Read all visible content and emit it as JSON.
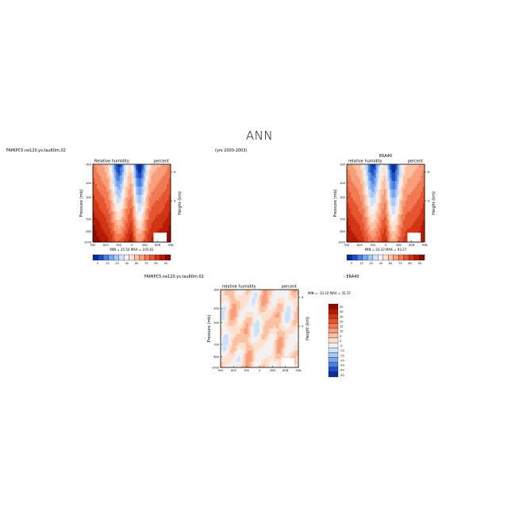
{
  "page": {
    "title": "ANN",
    "case_label": "FAMIPC5.ne120.ys.tau60m.02",
    "years_label": "(yrs 2000-2003)",
    "diff_case_label": "FAMIPC5.ne120.ys.tau60m.02",
    "diff_ref_label": "- ERA40"
  },
  "colors": {
    "scale": [
      "#08309a",
      "#1f4fc4",
      "#4a7fe0",
      "#78a8f0",
      "#a8c8f6",
      "#d0e2fa",
      "#f2f2f2",
      "#fde0cf",
      "#fcc1a3",
      "#f89e7a",
      "#f27a52",
      "#e65530",
      "#d23515",
      "#b51a05",
      "#8f0a00"
    ]
  },
  "chart_data": [
    {
      "type": "heatmap",
      "panel": "model",
      "title_left": "Relative humidity",
      "title_right": "percent",
      "ylabel": "Pressure (mb)",
      "y2label": "Height (km)",
      "x_ticks": [
        "90S",
        "60S",
        "30S",
        "0",
        "30N",
        "60N",
        "90N"
      ],
      "y_ticks": [
        "300",
        "400",
        "500",
        "700",
        "850",
        "1000"
      ],
      "y2_ticks": [
        "8",
        "4"
      ],
      "ylim": [
        1000,
        300
      ],
      "stats": "MIN = 25.54  MAX = 105.61",
      "min": 25.54,
      "max": 105.61,
      "colorbar_ticks": [
        "5",
        "15",
        "25",
        "40",
        "60",
        "75",
        "85",
        "95"
      ]
    },
    {
      "type": "heatmap",
      "panel": "obs",
      "header": "ERA40",
      "title_left": "relative humidity",
      "title_right": "percent",
      "ylabel": "Pressure (mb)",
      "y2label": "Height (km)",
      "x_ticks": [
        "90S",
        "60S",
        "30S",
        "0",
        "30N",
        "60N",
        "90N"
      ],
      "y_ticks": [
        "300",
        "400",
        "500",
        "700",
        "850",
        "1000"
      ],
      "y2_ticks": [
        "8",
        "4"
      ],
      "ylim": [
        1000,
        300
      ],
      "stats": "MIN = 24.10  MAX = 93.27",
      "min": 24.1,
      "max": 93.27,
      "colorbar_ticks": [
        "5",
        "15",
        "25",
        "40",
        "60",
        "75",
        "85",
        "95"
      ]
    },
    {
      "type": "heatmap",
      "panel": "difference",
      "title_left": "relative humidity",
      "title_right": "percent",
      "ylabel": "Pressure (mb)",
      "y2label": "Height (km)",
      "x_ticks": [
        "90S",
        "60S",
        "30S",
        "0",
        "30N",
        "60N",
        "90N"
      ],
      "y_ticks": [
        "300",
        "400",
        "500",
        "700",
        "850",
        "1000"
      ],
      "y2_ticks": [
        "8",
        "4"
      ],
      "ylim": [
        1000,
        300
      ],
      "stats": "MIN = -33.10  MAX = 35.37",
      "min": -33.1,
      "max": 35.37,
      "colorbar_levels": [
        "50",
        "40",
        "30",
        "20",
        "15",
        "10",
        "5",
        "0",
        "-5",
        "-10",
        "-15",
        "-20",
        "-30",
        "-40",
        "-50"
      ]
    }
  ]
}
